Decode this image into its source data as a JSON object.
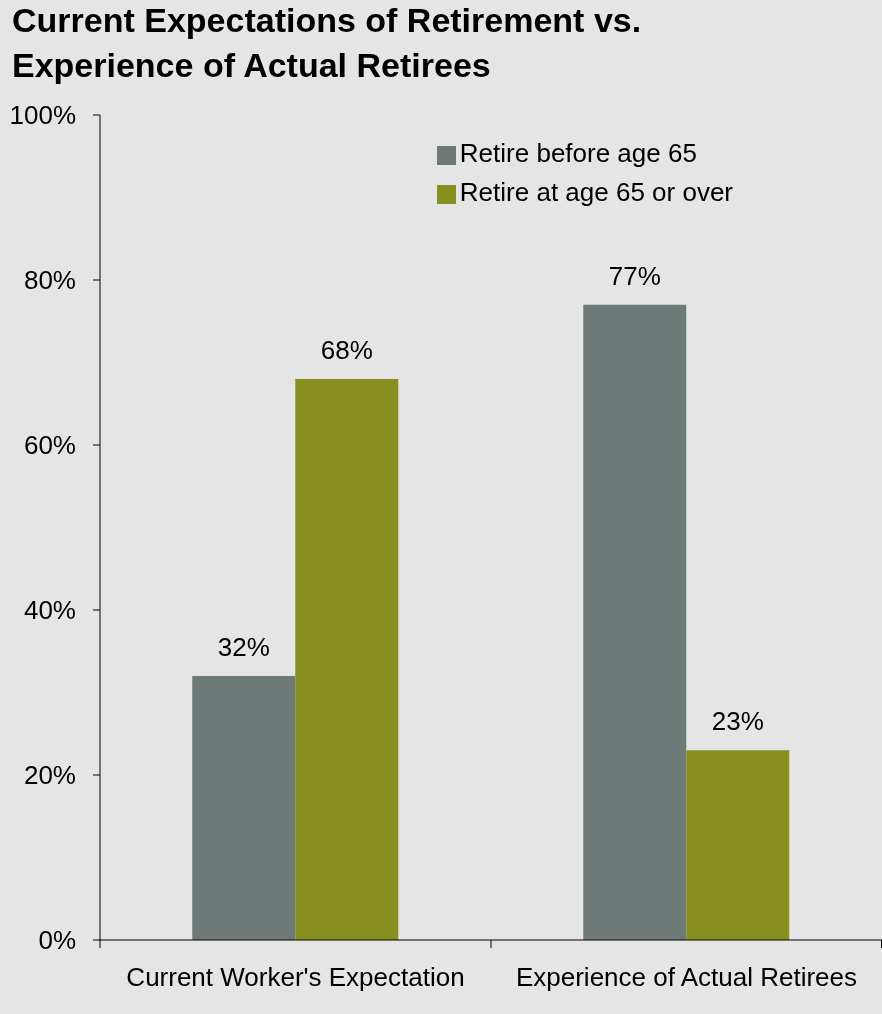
{
  "chart_data": {
    "type": "bar",
    "title": "Current Expectations of Retirement vs. Experience of Actual Retirees",
    "categories": [
      "Current Worker's Expectation",
      "Experience of Actual Retirees"
    ],
    "series": [
      {
        "name": "Retire before age 65",
        "color": "#6e7a77",
        "values": [
          32,
          77
        ],
        "value_labels": [
          "32%",
          "77%"
        ]
      },
      {
        "name": "Retire at age 65 or over",
        "color": "#878f1e",
        "values": [
          68,
          23
        ],
        "value_labels": [
          "68%",
          "23%"
        ]
      }
    ],
    "ylim": [
      0,
      100
    ],
    "yticks": [
      {
        "value": 0,
        "label": "0%"
      },
      {
        "value": 20,
        "label": "20%"
      },
      {
        "value": 40,
        "label": "40%"
      },
      {
        "value": 60,
        "label": "60%"
      },
      {
        "value": 80,
        "label": "80%"
      },
      {
        "value": 100,
        "label": "100%"
      }
    ],
    "legend": "top right"
  }
}
